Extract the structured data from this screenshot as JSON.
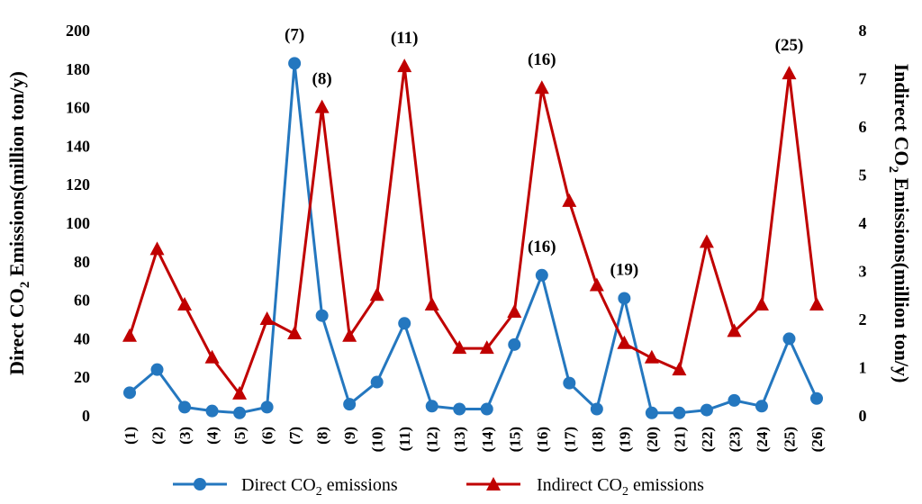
{
  "chart_data": {
    "type": "line",
    "categories": [
      "(1)",
      "(2)",
      "(3)",
      "(4)",
      "(5)",
      "(6)",
      "(7)",
      "(8)",
      "(9)",
      "(10)",
      "(11)",
      "(12)",
      "(13)",
      "(14)",
      "(15)",
      "(16)",
      "(17)",
      "(18)",
      "(19)",
      "(20)",
      "(21)",
      "(22)",
      "(23)",
      "(24)",
      "(25)",
      "(26)"
    ],
    "series": [
      {
        "name": "Direct CO2 emissions",
        "name_main": "Direct CO",
        "name_sub": "2",
        "name_tail": " emissions",
        "axis": "left",
        "color": "#2477bf",
        "marker": "circle",
        "values": [
          12,
          24,
          4.5,
          2.5,
          1.5,
          4.5,
          183,
          52,
          6,
          17.5,
          48,
          5,
          3.5,
          3.5,
          37,
          73,
          17,
          3.5,
          61,
          1.5,
          1.5,
          3,
          8,
          5,
          40,
          9
        ]
      },
      {
        "name": "Indirect CO2 emissions",
        "name_main": "Indirect CO",
        "name_sub": "2",
        "name_tail": " emissions",
        "axis": "right",
        "color": "#c00000",
        "marker": "triangle",
        "values": [
          1.65,
          3.45,
          2.3,
          1.2,
          0.45,
          2.0,
          1.7,
          6.4,
          1.65,
          2.5,
          7.25,
          2.3,
          1.4,
          1.4,
          2.15,
          6.8,
          4.45,
          2.7,
          1.5,
          1.2,
          0.95,
          3.6,
          1.75,
          2.3,
          7.1,
          2.3
        ]
      }
    ],
    "y_left": {
      "label_main": "Direct CO",
      "label_sub": "2",
      "label_tail": " Emissions(million ton/y)",
      "ylim": [
        0,
        200
      ],
      "ticks": [
        "0",
        "20",
        "40",
        "60",
        "80",
        "100",
        "120",
        "140",
        "160",
        "180",
        "200"
      ]
    },
    "y_right": {
      "label_main": "Indirect CO",
      "label_sub": "2",
      "label_tail": " Emissions(million ton/y)",
      "ylim": [
        0,
        8
      ],
      "ticks": [
        "0",
        "1",
        "2",
        "3",
        "4",
        "5",
        "6",
        "7",
        "8"
      ]
    },
    "annotations": [
      {
        "text": "(7)",
        "series": 0,
        "index": 6
      },
      {
        "text": "(8)",
        "series": 1,
        "index": 7
      },
      {
        "text": "(11)",
        "series": 1,
        "index": 10
      },
      {
        "text": "(16)",
        "series": 1,
        "index": 15
      },
      {
        "text": "(16)",
        "series": 0,
        "index": 15
      },
      {
        "text": "(19)",
        "series": 0,
        "index": 18
      },
      {
        "text": "(25)",
        "series": 1,
        "index": 24
      }
    ],
    "grid": false,
    "legend": "bottom"
  }
}
